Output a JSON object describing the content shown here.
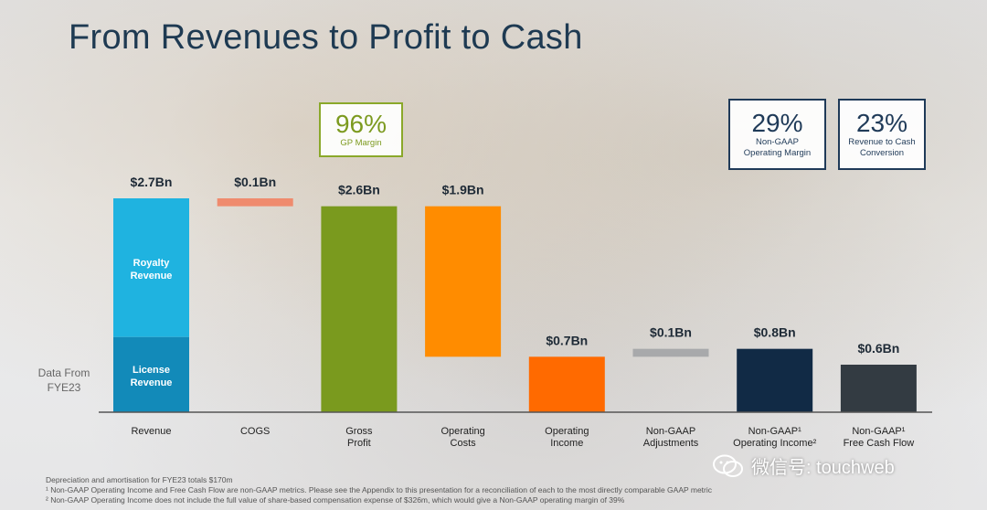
{
  "title": "From Revenues to Profit to Cash",
  "kpis": {
    "gp_margin": {
      "value": "96%",
      "label": "GP Margin"
    },
    "op_margin": {
      "value": "29%",
      "label_line1": "Non-GAAP",
      "label_line2": "Operating Margin"
    },
    "cash_conversion": {
      "value": "23%",
      "label_line1": "Revenue to Cash",
      "label_line2": "Conversion"
    }
  },
  "side_label": {
    "line1": "Data From",
    "line2": "FYE23"
  },
  "chart_data": {
    "type": "bar",
    "subtype": "waterfall",
    "unit": "$Bn",
    "categories": [
      {
        "line1": "Revenue",
        "line2": ""
      },
      {
        "line1": "COGS",
        "line2": ""
      },
      {
        "line1": "Gross",
        "line2": "Profit"
      },
      {
        "line1": "Operating",
        "line2": "Costs"
      },
      {
        "line1": "Operating",
        "line2": "Income"
      },
      {
        "line1": "Non-GAAP",
        "line2": "Adjustments"
      },
      {
        "line1": "Non-GAAP¹",
        "line2": "Operating Income²"
      },
      {
        "line1": "Non-GAAP¹",
        "line2": "Free Cash Flow"
      }
    ],
    "bars": [
      {
        "value_label": "$2.7Bn",
        "base": 0,
        "top": 2.7,
        "color": "#1fb3e0",
        "segments": [
          {
            "label_line1": "License",
            "label_line2": "Revenue",
            "from": 0,
            "to": 0.95,
            "color": "#128ab9"
          },
          {
            "label_line1": "Royalty",
            "label_line2": "Revenue",
            "from": 0.95,
            "to": 2.7,
            "color": "#1fb3e0"
          }
        ]
      },
      {
        "value_label": "$0.1Bn",
        "base": 2.6,
        "top": 2.7,
        "color": "#ef8b6e"
      },
      {
        "value_label": "$2.6Bn",
        "base": 0,
        "top": 2.6,
        "color": "#7a9a1e"
      },
      {
        "value_label": "$1.9Bn",
        "base": 0.7,
        "top": 2.6,
        "color": "#ff8c00"
      },
      {
        "value_label": "$0.7Bn",
        "base": 0,
        "top": 0.7,
        "color": "#ff6a00"
      },
      {
        "value_label": "$0.1Bn",
        "base": 0.7,
        "top": 0.8,
        "color": "#a8a9ab"
      },
      {
        "value_label": "$0.8Bn",
        "base": 0,
        "top": 0.8,
        "color": "#112a45"
      },
      {
        "value_label": "$0.6Bn",
        "base": 0,
        "top": 0.6,
        "color": "#333b42"
      }
    ]
  },
  "footnotes": [
    "Depreciation and amortisation for FYE23 totals $170m",
    "¹ Non-GAAP Operating Income and Free Cash Flow are non-GAAP metrics. Please see the Appendix to this presentation for a reconciliation of each to the most directly comparable GAAP metric",
    "² Non-GAAP Operating Income does not include the full value of share-based compensation expense of $326m, which would give a Non-GAAP operating margin of 39%"
  ],
  "watermark": "微信号: touchweb"
}
